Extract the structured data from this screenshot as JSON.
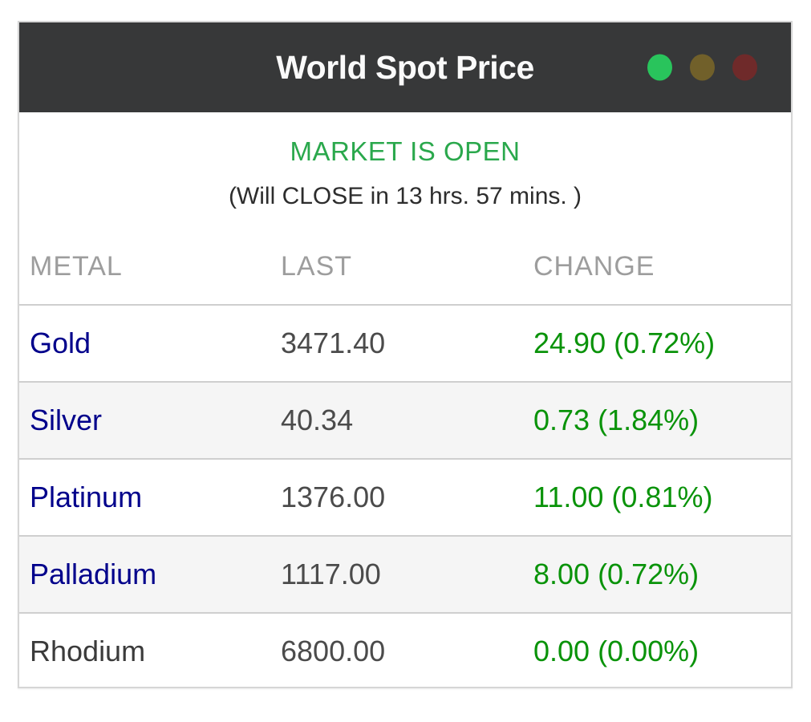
{
  "window": {
    "title": "World Spot Price",
    "traffic_lights": [
      {
        "name": "green-dot",
        "color": "#29c45c"
      },
      {
        "name": "yellow-dot",
        "color": "#71602a"
      },
      {
        "name": "red-dot",
        "color": "#6f2a2a"
      }
    ]
  },
  "status": {
    "market_state": "MARKET IS OPEN",
    "countdown": "(Will CLOSE in 13 hrs. 57 mins. )"
  },
  "table": {
    "headers": [
      "METAL",
      "LAST",
      "CHANGE"
    ],
    "rows": [
      {
        "metal": "Gold",
        "last": "3471.40",
        "change": "24.90 (0.72%)"
      },
      {
        "metal": "Silver",
        "last": "40.34",
        "change": "0.73 (1.84%)"
      },
      {
        "metal": "Platinum",
        "last": "1376.00",
        "change": "11.00 (0.81%)"
      },
      {
        "metal": "Palladium",
        "last": "1117.00",
        "change": "8.00 (0.72%)"
      },
      {
        "metal": "Rhodium",
        "last": "6800.00",
        "change": "0.00 (0.00%)"
      }
    ]
  },
  "colors": {
    "titlebar_bg": "#373839",
    "market_open_green": "#2aa84c",
    "change_green": "#0a930a",
    "metal_link_blue": "#00008b",
    "alt_row_bg": "#f5f5f5",
    "header_text_gray": "#9d9d9d"
  }
}
